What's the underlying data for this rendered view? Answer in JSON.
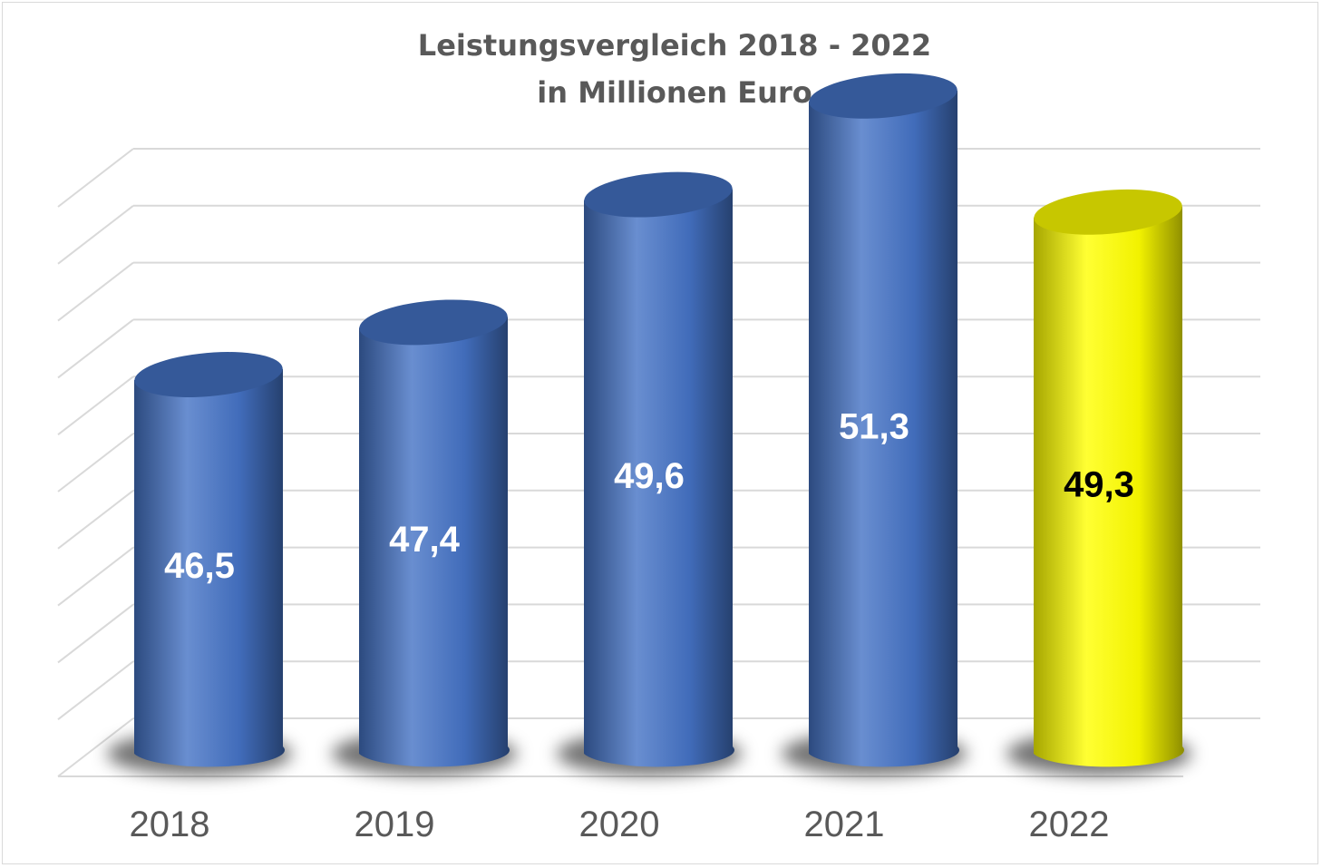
{
  "chart_data": {
    "type": "bar",
    "title": "Leistungsvergleich 2018 - 2022",
    "subtitle": "in Millionen Euro",
    "categories": [
      "2018",
      "2019",
      "2020",
      "2021",
      "2022"
    ],
    "values": [
      46.5,
      47.4,
      49.6,
      51.3,
      49.3
    ],
    "data_labels": [
      "46,5",
      "47,4",
      "49,6",
      "51,3",
      "49,3"
    ],
    "bar_colors": [
      "#4472c4",
      "#4472c4",
      "#4472c4",
      "#4472c4",
      "#ffff00"
    ],
    "label_colors": [
      "#ffffff",
      "#ffffff",
      "#ffffff",
      "#ffffff",
      "#000000"
    ],
    "bar_shape": "cylinder",
    "ylim": [
      0,
      55
    ],
    "grid": true,
    "legend": "none"
  }
}
